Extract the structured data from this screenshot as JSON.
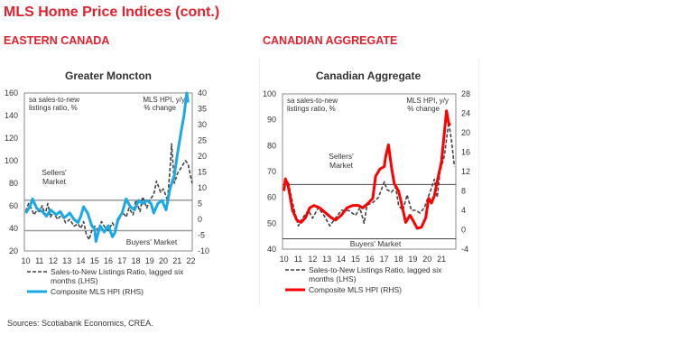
{
  "page": {
    "title": "MLS Home Price Indices (cont.)",
    "section_left": "EASTERN CANADA",
    "section_right": "CANADIAN AGGREGATE",
    "sources": "Sources: Scotiabank Economics, CREA."
  },
  "chart_data": [
    {
      "type": "line",
      "title": "Greater Moncton",
      "ylabel_left": "sa sales-to-new listings ratio, %",
      "ylabel_right": "MLS HPI, y/y % change",
      "ylim_left": [
        20,
        160
      ],
      "yticks_left": [
        "160",
        "140",
        "120",
        "100",
        "80",
        "60",
        "40",
        "20"
      ],
      "ylim_right": [
        -10,
        40
      ],
      "yticks_right": [
        "40",
        "35",
        "30",
        "25",
        "20",
        "15",
        "10",
        "5",
        "0",
        "-5",
        "-10"
      ],
      "xlim": [
        2009.9,
        2022.1
      ],
      "xticks": [
        "10",
        "11",
        "12",
        "13",
        "14",
        "15",
        "16",
        "17",
        "18",
        "19",
        "20",
        "21",
        "22"
      ],
      "annotations": {
        "sellers": "Sellers' Market",
        "buyers": "Buyers' Market"
      },
      "thresholds_left": {
        "sellers": 65,
        "buyers": 38
      },
      "series": [
        {
          "name": "Sales-to-New Listings Ratio, lagged six months (LHS)",
          "axis": "left",
          "style": "dashed",
          "color": "#444444",
          "x": [
            2010,
            2010.2,
            2010.4,
            2010.6,
            2010.8,
            2011,
            2011.2,
            2011.4,
            2011.6,
            2011.8,
            2012,
            2012.3,
            2012.6,
            2012.9,
            2013.2,
            2013.5,
            2013.8,
            2014,
            2014.2,
            2014.4,
            2014.6,
            2014.8,
            2015,
            2015.3,
            2015.5,
            2015.8,
            2016,
            2016.3,
            2016.5,
            2016.8,
            2017,
            2017.3,
            2017.5,
            2017.8,
            2018,
            2018.3,
            2018.5,
            2018.8,
            2019,
            2019.3,
            2019.5,
            2019.8,
            2020,
            2020.3,
            2020.5,
            2020.6,
            2020.8,
            2021,
            2021.2,
            2021.4,
            2021.6,
            2021.8,
            2022,
            2022.1
          ],
          "y": [
            55,
            62,
            58,
            52,
            56,
            55,
            60,
            52,
            62,
            50,
            55,
            48,
            52,
            45,
            48,
            42,
            44,
            40,
            46,
            35,
            30,
            38,
            42,
            38,
            46,
            40,
            38,
            45,
            40,
            48,
            55,
            50,
            58,
            52,
            65,
            55,
            68,
            58,
            65,
            70,
            82,
            72,
            75,
            65,
            95,
            115,
            80,
            88,
            92,
            96,
            100,
            97,
            85,
            80
          ]
        },
        {
          "name": "Composite MLS HPI (RHS)",
          "axis": "right",
          "style": "solid",
          "color": "#1ba9e6",
          "x": [
            2010,
            2010.3,
            2010.5,
            2010.8,
            2011.2,
            2011.5,
            2011.8,
            2012.2,
            2012.5,
            2012.8,
            2013.2,
            2013.5,
            2013.8,
            2014,
            2014.2,
            2014.5,
            2014.8,
            2015,
            2015.1,
            2015.4,
            2015.7,
            2016,
            2016.3,
            2016.5,
            2016.7,
            2017,
            2017.3,
            2017.6,
            2017.9,
            2018.2,
            2018.5,
            2018.8,
            2019.1,
            2019.3,
            2019.6,
            2019.9,
            2020.2,
            2020.5,
            2020.8,
            2021,
            2021.3,
            2021.5,
            2021.7,
            2021.8
          ],
          "y": [
            2,
            4,
            6.5,
            3.5,
            2.5,
            1,
            3,
            1.5,
            2.5,
            0.5,
            2,
            0,
            -1,
            1,
            4,
            2,
            -2,
            -3,
            -7,
            -2,
            -4,
            -2,
            -5.5,
            -4,
            0,
            2,
            6.5,
            4,
            3,
            6,
            5,
            6,
            5,
            2,
            5,
            6,
            3,
            10,
            14,
            20,
            28,
            33,
            40,
            37
          ]
        }
      ]
    },
    {
      "type": "line",
      "title": "Canadian Aggregate",
      "ylabel_left": "sa sales-to-new listings ratio, %",
      "ylabel_right": "MLS HPI, y/y % change",
      "ylim_left": [
        40,
        100
      ],
      "yticks_left": [
        "100",
        "90",
        "80",
        "70",
        "60",
        "50",
        "40"
      ],
      "ylim_right": [
        -4,
        28
      ],
      "yticks_right": [
        "28",
        "24",
        "20",
        "16",
        "12",
        "8",
        "4",
        "0",
        "-4"
      ],
      "xlim": [
        2009.9,
        2022
      ],
      "xticks": [
        "10",
        "11",
        "12",
        "13",
        "14",
        "15",
        "16",
        "17",
        "18",
        "19",
        "20",
        "21"
      ],
      "annotations": {
        "sellers": "Sellers' Market",
        "buyers": "Buyers' Market"
      },
      "thresholds_left": {
        "sellers": 65,
        "buyers": 44
      },
      "series": [
        {
          "name": "Sales-to-New Listings Ratio, lagged six months (LHS)",
          "axis": "left",
          "style": "dashed",
          "color": "#444444",
          "x": [
            2010,
            2010.3,
            2010.6,
            2011,
            2011.3,
            2011.7,
            2012,
            2012.4,
            2012.8,
            2013.2,
            2013.6,
            2014,
            2014.5,
            2015,
            2015.3,
            2015.6,
            2015.8,
            2016.2,
            2016.6,
            2017,
            2017.2,
            2017.5,
            2017.8,
            2018,
            2018.3,
            2018.6,
            2018.9,
            2019.2,
            2019.5,
            2019.8,
            2020.2,
            2020.5,
            2020.7,
            2020.9,
            2021.2,
            2021.5,
            2021.7,
            2021.9
          ],
          "y": [
            65,
            66,
            58,
            49,
            52,
            55,
            52,
            56,
            53,
            49,
            52,
            55,
            55,
            53,
            56,
            50,
            57,
            58,
            60,
            66,
            63,
            62,
            64,
            57,
            55,
            61,
            55,
            55,
            54,
            56,
            62,
            67,
            60,
            70,
            76,
            89,
            82,
            72
          ]
        },
        {
          "name": "Composite MLS HPI (RHS)",
          "axis": "right",
          "style": "solid",
          "color": "#ff0000",
          "x": [
            2010,
            2010.1,
            2010.3,
            2010.6,
            2010.9,
            2011.2,
            2011.5,
            2011.8,
            2012.1,
            2012.5,
            2012.9,
            2013.3,
            2013.6,
            2014,
            2014.4,
            2014.8,
            2015.2,
            2015.5,
            2015.9,
            2016.2,
            2016.4,
            2016.7,
            2017,
            2017.1,
            2017.3,
            2017.5,
            2017.7,
            2018,
            2018.2,
            2018.5,
            2018.8,
            2019,
            2019.3,
            2019.6,
            2019.9,
            2020.1,
            2020.3,
            2020.5,
            2020.7,
            2021,
            2021.2,
            2021.35,
            2021.5,
            2021.6
          ],
          "y": [
            8,
            10.5,
            9,
            4,
            2,
            1.5,
            2.5,
            4.5,
            5,
            4.5,
            3.5,
            2.5,
            2,
            3,
            4.5,
            5,
            5,
            4.5,
            5.5,
            6.5,
            11,
            12.5,
            13,
            15,
            17.5,
            13,
            9.5,
            8,
            5.5,
            1.5,
            3,
            2,
            0.3,
            0.5,
            2.5,
            6.5,
            5.5,
            7,
            10,
            14,
            20,
            24.5,
            22,
            21.5
          ]
        }
      ]
    }
  ]
}
